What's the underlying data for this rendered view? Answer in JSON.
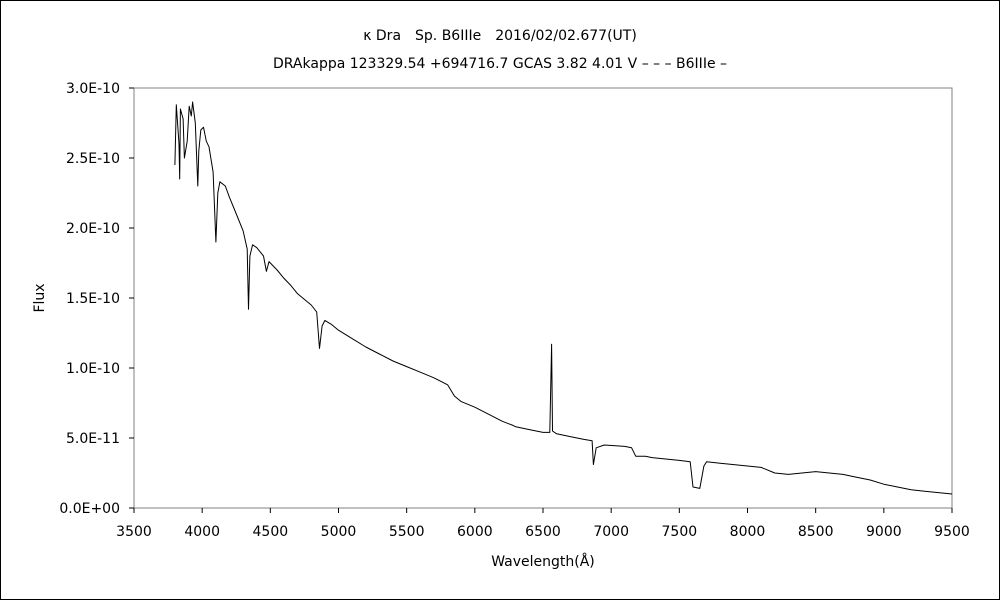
{
  "chart_data": {
    "type": "line",
    "title": "κ Dra　Sp. B6IIIe　2016/02/02.677(UT)",
    "subtitle": "DRAkappa 123329.54 +694716.7 GCAS 3.82 4.01 V – – – B6IIIe –",
    "xlabel": "Wavelength(Å)",
    "ylabel": "Flux",
    "xlim": [
      3500,
      9500
    ],
    "ylim": [
      0,
      3e-10
    ],
    "x_ticks": [
      "3500",
      "4000",
      "4500",
      "5000",
      "5500",
      "6000",
      "6500",
      "7000",
      "7500",
      "8000",
      "8500",
      "9000",
      "9500"
    ],
    "y_ticks": [
      "0.0E+00",
      "5.0E-11",
      "1.0E-10",
      "1.5E-10",
      "2.0E-10",
      "2.5E-10",
      "3.0E-10"
    ],
    "grid": false,
    "series": [
      {
        "color": "#000000",
        "points": [
          [
            3800,
            2.45e-10
          ],
          [
            3810,
            2.88e-10
          ],
          [
            3830,
            2.6e-10
          ],
          [
            3835,
            2.35e-10
          ],
          [
            3840,
            2.85e-10
          ],
          [
            3860,
            2.78e-10
          ],
          [
            3870,
            2.5e-10
          ],
          [
            3890,
            2.62e-10
          ],
          [
            3905,
            2.87e-10
          ],
          [
            3920,
            2.8e-10
          ],
          [
            3930,
            2.9e-10
          ],
          [
            3950,
            2.75e-10
          ],
          [
            3968,
            2.3e-10
          ],
          [
            3975,
            2.55e-10
          ],
          [
            3990,
            2.7e-10
          ],
          [
            4010,
            2.72e-10
          ],
          [
            4030,
            2.62e-10
          ],
          [
            4050,
            2.58e-10
          ],
          [
            4080,
            2.4e-10
          ],
          [
            4101,
            1.9e-10
          ],
          [
            4115,
            2.25e-10
          ],
          [
            4130,
            2.33e-10
          ],
          [
            4170,
            2.3e-10
          ],
          [
            4200,
            2.22e-10
          ],
          [
            4250,
            2.1e-10
          ],
          [
            4300,
            1.98e-10
          ],
          [
            4330,
            1.85e-10
          ],
          [
            4340,
            1.42e-10
          ],
          [
            4350,
            1.8e-10
          ],
          [
            4370,
            1.88e-10
          ],
          [
            4400,
            1.86e-10
          ],
          [
            4450,
            1.8e-10
          ],
          [
            4471,
            1.69e-10
          ],
          [
            4490,
            1.76e-10
          ],
          [
            4550,
            1.7e-10
          ],
          [
            4600,
            1.64e-10
          ],
          [
            4650,
            1.59e-10
          ],
          [
            4700,
            1.53e-10
          ],
          [
            4750,
            1.49e-10
          ],
          [
            4800,
            1.45e-10
          ],
          [
            4840,
            1.4e-10
          ],
          [
            4861,
            1.14e-10
          ],
          [
            4880,
            1.3e-10
          ],
          [
            4900,
            1.34e-10
          ],
          [
            4950,
            1.31e-10
          ],
          [
            5000,
            1.27e-10
          ],
          [
            5100,
            1.21e-10
          ],
          [
            5200,
            1.15e-10
          ],
          [
            5300,
            1.1e-10
          ],
          [
            5400,
            1.05e-10
          ],
          [
            5500,
            1.01e-10
          ],
          [
            5600,
            9.7e-11
          ],
          [
            5700,
            9.3e-11
          ],
          [
            5800,
            8.8e-11
          ],
          [
            5850,
            8e-11
          ],
          [
            5900,
            7.6e-11
          ],
          [
            6000,
            7.2e-11
          ],
          [
            6100,
            6.7e-11
          ],
          [
            6200,
            6.2e-11
          ],
          [
            6280,
            5.9e-11
          ],
          [
            6300,
            5.8e-11
          ],
          [
            6400,
            5.6e-11
          ],
          [
            6500,
            5.4e-11
          ],
          [
            6550,
            5.4e-11
          ],
          [
            6563,
            1.17e-10
          ],
          [
            6570,
            5.5e-11
          ],
          [
            6600,
            5.3e-11
          ],
          [
            6700,
            5.1e-11
          ],
          [
            6800,
            4.9e-11
          ],
          [
            6860,
            4.8e-11
          ],
          [
            6870,
            3.1e-11
          ],
          [
            6890,
            4.3e-11
          ],
          [
            6950,
            4.5e-11
          ],
          [
            7100,
            4.4e-11
          ],
          [
            7150,
            4.3e-11
          ],
          [
            7180,
            3.7e-11
          ],
          [
            7250,
            3.7e-11
          ],
          [
            7300,
            3.6e-11
          ],
          [
            7400,
            3.5e-11
          ],
          [
            7500,
            3.4e-11
          ],
          [
            7580,
            3.3e-11
          ],
          [
            7600,
            1.5e-11
          ],
          [
            7650,
            1.4e-11
          ],
          [
            7680,
            3e-11
          ],
          [
            7700,
            3.3e-11
          ],
          [
            7800,
            3.2e-11
          ],
          [
            7900,
            3.1e-11
          ],
          [
            8000,
            3e-11
          ],
          [
            8100,
            2.9e-11
          ],
          [
            8200,
            2.5e-11
          ],
          [
            8300,
            2.4e-11
          ],
          [
            8400,
            2.5e-11
          ],
          [
            8500,
            2.6e-11
          ],
          [
            8600,
            2.5e-11
          ],
          [
            8700,
            2.4e-11
          ],
          [
            8800,
            2.2e-11
          ],
          [
            8900,
            2e-11
          ],
          [
            9000,
            1.7e-11
          ],
          [
            9100,
            1.5e-11
          ],
          [
            9200,
            1.3e-11
          ],
          [
            9300,
            1.2e-11
          ],
          [
            9400,
            1.1e-11
          ],
          [
            9500,
            1e-11
          ]
        ]
      }
    ]
  }
}
